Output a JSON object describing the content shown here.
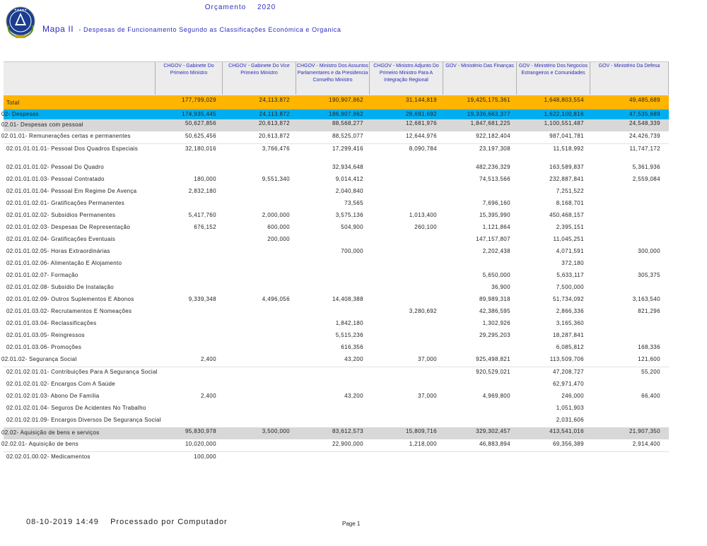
{
  "header": {
    "title_word": "Orçamento",
    "title_year": "2020",
    "map_label": "Mapa II",
    "subtitle": "- Despesas de Funcionamento Segundo as Classificações Económica e Organica"
  },
  "columns": [
    "CHGOV - Gabinete Do Primeiro Ministro",
    "CHGOV - Gabinete Do Vice Primeiro Ministro",
    "CHGOV - Ministro Dos Assuntos Parlamentares e da Presidencia Conselho Ministro",
    "CHGOV - Ministro Adjunto Do Primeiro Ministro Para A Integração Regional",
    "GOV - Ministério Das Finanças",
    "GOV - Ministério Dos Negocios Estrangeiros e Comunidades",
    "GOV - Ministério Da Defesa"
  ],
  "rows": [
    {
      "label": "Total",
      "values": [
        "177,799,029",
        "24,113,872",
        "190,907,862",
        "31,144,819",
        "19,425,175,361",
        "1,648,803,554",
        "49,485,689"
      ]
    },
    {
      "label": "02- Despesas",
      "values": [
        "174,935,445",
        "24,113,872",
        "186,907,862",
        "28,691,692",
        "19,336,663,377",
        "1,622,100,816",
        "47,535,689"
      ]
    },
    {
      "label": "02.01- Despesas com pessoal",
      "values": [
        "50,627,856",
        "20,613,872",
        "88,568,277",
        "12,681,976",
        "1,847,681,225",
        "1,100,551,487",
        "24,548,339"
      ]
    },
    {
      "label": "02.01.01- Remunerações certas e permanentes",
      "values": [
        "50,625,456",
        "20,613,872",
        "88,525,077",
        "12,644,976",
        "922,182,404",
        "987,041,781",
        "24,426,739"
      ]
    },
    {
      "label": "02.01.01.01.01- Pessoal Dos Quadros Especiais",
      "values": [
        "32,180,016",
        "3,766,476",
        "17,299,416",
        "8,090,784",
        "23,197,308",
        "11,518,992",
        "11,747,172"
      ]
    },
    {
      "label": "02.01.01.01.02- Pessoal Do Quadro",
      "values": [
        "",
        "",
        "32,934,648",
        "",
        "482,236,329",
        "163,589,837",
        "5,361,936"
      ]
    },
    {
      "label": "02.01.01.01.03- Pessoal Contratado",
      "values": [
        "180,000",
        "9,551,340",
        "9,014,412",
        "",
        "74,513,566",
        "232,887,841",
        "2,559,084"
      ]
    },
    {
      "label": "02.01.01.01.04- Pessoal Em Regime De Avença",
      "values": [
        "2,832,180",
        "",
        "2,040,840",
        "",
        "",
        "7,251,522",
        ""
      ]
    },
    {
      "label": "02.01.01.02.01- Gratificações Permanentes",
      "values": [
        "",
        "",
        "73,565",
        "",
        "7,696,160",
        "8,168,701",
        ""
      ]
    },
    {
      "label": "02.01.01.02.02- Subsídios Permanentes",
      "values": [
        "5,417,760",
        "2,000,000",
        "3,575,136",
        "1,013,400",
        "15,395,990",
        "450,468,157",
        ""
      ]
    },
    {
      "label": "02.01.01.02.03- Despesas De Representação",
      "values": [
        "676,152",
        "600,000",
        "504,900",
        "260,100",
        "1,121,864",
        "2,395,151",
        ""
      ]
    },
    {
      "label": "02.01.01.02.04- Gratificações Eventuais",
      "values": [
        "",
        "200,000",
        "",
        "",
        "147,157,807",
        "11,045,251",
        ""
      ]
    },
    {
      "label": "02.01.01.02.05- Horas Extraordinárias",
      "values": [
        "",
        "",
        "700,000",
        "",
        "2,202,438",
        "4,071,591",
        "300,000"
      ]
    },
    {
      "label": "02.01.01.02.06- Alimentação E Alojamento",
      "values": [
        "",
        "",
        "",
        "",
        "",
        "372,180",
        ""
      ]
    },
    {
      "label": "02.01.01.02.07- Formação",
      "values": [
        "",
        "",
        "",
        "",
        "5,650,000",
        "5,633,117",
        "305,375"
      ]
    },
    {
      "label": "02.01.01.02.08- Subsídio De Instalação",
      "values": [
        "",
        "",
        "",
        "",
        "36,900",
        "7,500,000",
        ""
      ]
    },
    {
      "label": "02.01.01.02.09- Outros Suplementos E Abonos",
      "values": [
        "9,339,348",
        "4,496,056",
        "14,408,388",
        "",
        "89,989,318",
        "51,734,092",
        "3,163,540"
      ]
    },
    {
      "label": "02.01.01.03.02- Recrutamentos E Nomeações",
      "values": [
        "",
        "",
        "",
        "3,280,692",
        "42,386,595",
        "2,866,336",
        "821,296"
      ]
    },
    {
      "label": "02.01.01.03.04- Reclassificações",
      "values": [
        "",
        "",
        "1,842,180",
        "",
        "1,302,926",
        "3,165,360",
        ""
      ]
    },
    {
      "label": "02.01.01.03.05- Reingressos",
      "values": [
        "",
        "",
        "5,515,236",
        "",
        "29,295,203",
        "18,287,841",
        ""
      ]
    },
    {
      "label": "02.01.01.03.06- Promoções",
      "values": [
        "",
        "",
        "616,356",
        "",
        "",
        "6,085,812",
        "168,336"
      ]
    },
    {
      "label": "02.01.02- Segurança Social",
      "values": [
        "2,400",
        "",
        "43,200",
        "37,000",
        "925,498,821",
        "113,509,706",
        "121,600"
      ]
    },
    {
      "label": "02.01.02.01.01- Contribuições Para A Segurança Social",
      "values": [
        "",
        "",
        "",
        "",
        "920,529,021",
        "47,208,727",
        "55,200"
      ]
    },
    {
      "label": "02.01.02.01.02- Encargos Com A Saúde",
      "values": [
        "",
        "",
        "",
        "",
        "",
        "62,971,470",
        ""
      ]
    },
    {
      "label": "02.01.02.01.03- Abono De Família",
      "values": [
        "2,400",
        "",
        "43,200",
        "37,000",
        "4,969,800",
        "246,000",
        "66,400"
      ]
    },
    {
      "label": "02.01.02.01.04- Seguros De Acidentes No Trabalho",
      "values": [
        "",
        "",
        "",
        "",
        "",
        "1,051,903",
        ""
      ]
    },
    {
      "label": "02.01.02.01.09- Encargos Diversos De Segurança Social",
      "values": [
        "",
        "",
        "",
        "",
        "",
        "2,031,606",
        ""
      ]
    },
    {
      "label": "02.02- Aquisição de bens e serviços",
      "values": [
        "95,830,978",
        "3,500,000",
        "83,612,573",
        "15,809,716",
        "329,302,457",
        "413,541,016",
        "21,907,350"
      ]
    },
    {
      "label": "02.02.01- Aquisição de bens",
      "values": [
        "10,020,000",
        "",
        "22,900,000",
        "1,218,000",
        "46,883,894",
        "69,356,389",
        "2,914,400"
      ]
    },
    {
      "label": "02.02.01.00.02- Medicamentos",
      "values": [
        "100,000",
        "",
        "",
        "",
        "",
        "",
        ""
      ]
    }
  ],
  "footer": {
    "datetime": "08-10-2019 14:49",
    "processed_by": "Processado por Computador",
    "page": "Page 1"
  },
  "colors": {
    "total_row": "#ffb400",
    "despesas_row": "#00aeef",
    "group_row": "#d8d8d8",
    "header_text": "#2b2bbb"
  }
}
